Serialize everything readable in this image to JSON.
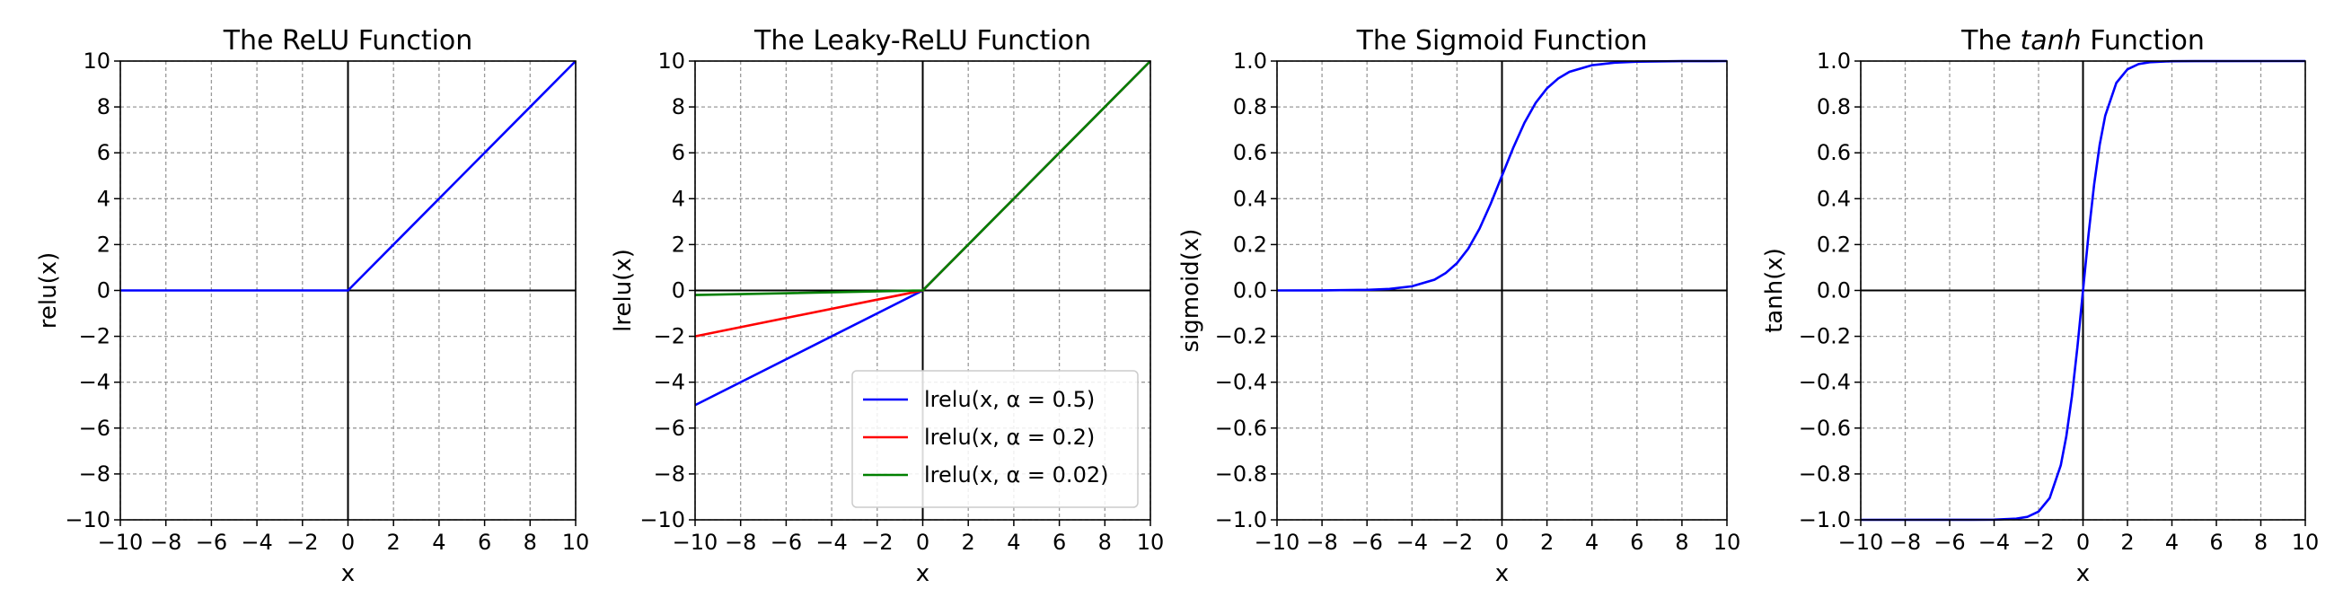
{
  "chart_data": [
    {
      "type": "line",
      "title": "The ReLU Function",
      "xlabel": "x",
      "ylabel": "relu(x)",
      "xlim": [
        -10,
        10
      ],
      "ylim": [
        -10,
        10
      ],
      "xticks": [
        -10,
        -8,
        -6,
        -4,
        -2,
        0,
        2,
        4,
        6,
        8,
        10
      ],
      "yticks": [
        -10,
        -8,
        -6,
        -4,
        -2,
        0,
        2,
        4,
        6,
        8,
        10
      ],
      "xtick_labels": [
        "−10",
        "−8",
        "−6",
        "−4",
        "−2",
        "0",
        "2",
        "4",
        "6",
        "8",
        "10"
      ],
      "ytick_labels": [
        "−10",
        "−8",
        "−6",
        "−4",
        "−2",
        "0",
        "2",
        "4",
        "6",
        "8",
        "10"
      ],
      "grid": true,
      "series": [
        {
          "color": "#0000ff",
          "x": [
            -10,
            0,
            10
          ],
          "y": [
            0,
            0,
            10
          ]
        }
      ]
    },
    {
      "type": "line",
      "title": "The Leaky-ReLU Function",
      "xlabel": "x",
      "ylabel": "lrelu(x)",
      "xlim": [
        -10,
        10
      ],
      "ylim": [
        -10,
        10
      ],
      "xticks": [
        -10,
        -8,
        -6,
        -4,
        -2,
        0,
        2,
        4,
        6,
        8,
        10
      ],
      "yticks": [
        -10,
        -8,
        -6,
        -4,
        -2,
        0,
        2,
        4,
        6,
        8,
        10
      ],
      "xtick_labels": [
        "−10",
        "−8",
        "−6",
        "−4",
        "−2",
        "0",
        "2",
        "4",
        "6",
        "8",
        "10"
      ],
      "ytick_labels": [
        "−10",
        "−8",
        "−6",
        "−4",
        "−2",
        "0",
        "2",
        "4",
        "6",
        "8",
        "10"
      ],
      "grid": true,
      "legend_placement": "lower-right",
      "series": [
        {
          "name": "lrelu(x, α = 0.5)",
          "color": "#0000ff",
          "x": [
            -10,
            0,
            10
          ],
          "y": [
            -5,
            0,
            10
          ]
        },
        {
          "name": "lrelu(x, α = 0.2)",
          "color": "#ff0000",
          "x": [
            -10,
            0,
            10
          ],
          "y": [
            -2,
            0,
            10
          ]
        },
        {
          "name": "lrelu(x, α = 0.02)",
          "color": "#008000",
          "x": [
            -10,
            0,
            10
          ],
          "y": [
            -0.2,
            0,
            10
          ]
        }
      ]
    },
    {
      "type": "line",
      "title": "The Sigmoid Function",
      "xlabel": "x",
      "ylabel": "sigmoid(x)",
      "xlim": [
        -10,
        10
      ],
      "ylim": [
        -1,
        1
      ],
      "xticks": [
        -10,
        -8,
        -6,
        -4,
        -2,
        0,
        2,
        4,
        6,
        8,
        10
      ],
      "yticks": [
        -1,
        -0.8,
        -0.6,
        -0.4,
        -0.2,
        0,
        0.2,
        0.4,
        0.6,
        0.8,
        1
      ],
      "xtick_labels": [
        "−10",
        "−8",
        "−6",
        "−4",
        "−2",
        "0",
        "2",
        "4",
        "6",
        "8",
        "10"
      ],
      "ytick_labels": [
        "−1.0",
        "−0.8",
        "−0.6",
        "−0.4",
        "−0.2",
        "0.0",
        "0.2",
        "0.4",
        "0.6",
        "0.8",
        "1.0"
      ],
      "grid": true,
      "series": [
        {
          "color": "#0000ff",
          "x": [
            -10,
            -8,
            -6,
            -5,
            -4,
            -3,
            -2.5,
            -2,
            -1.5,
            -1,
            -0.5,
            0,
            0.5,
            1,
            1.5,
            2,
            2.5,
            3,
            4,
            5,
            6,
            8,
            10
          ],
          "y": [
            5e-05,
            0.0003,
            0.0025,
            0.0067,
            0.018,
            0.047,
            0.076,
            0.119,
            0.182,
            0.269,
            0.378,
            0.5,
            0.622,
            0.731,
            0.818,
            0.881,
            0.924,
            0.953,
            0.982,
            0.993,
            0.9975,
            0.9997,
            1.0
          ]
        }
      ]
    },
    {
      "type": "line",
      "title_parts": [
        "The ",
        "tanh",
        " Function"
      ],
      "xlabel": "x",
      "ylabel": "tanh(x)",
      "xlim": [
        -10,
        10
      ],
      "ylim": [
        -1,
        1
      ],
      "xticks": [
        -10,
        -8,
        -6,
        -4,
        -2,
        0,
        2,
        4,
        6,
        8,
        10
      ],
      "yticks": [
        -1,
        -0.8,
        -0.6,
        -0.4,
        -0.2,
        0,
        0.2,
        0.4,
        0.6,
        0.8,
        1
      ],
      "xtick_labels": [
        "−10",
        "−8",
        "−6",
        "−4",
        "−2",
        "0",
        "2",
        "4",
        "6",
        "8",
        "10"
      ],
      "ytick_labels": [
        "−1.0",
        "−0.8",
        "−0.6",
        "−0.4",
        "−0.2",
        "0.0",
        "0.2",
        "0.4",
        "0.6",
        "0.8",
        "1.0"
      ],
      "grid": true,
      "series": [
        {
          "color": "#0000ff",
          "x": [
            -10,
            -5,
            -4,
            -3,
            -2.5,
            -2,
            -1.5,
            -1,
            -0.75,
            -0.5,
            -0.25,
            0,
            0.25,
            0.5,
            0.75,
            1,
            1.5,
            2,
            2.5,
            3,
            4,
            5,
            10
          ],
          "y": [
            -1.0,
            -0.9999,
            -0.9993,
            -0.995,
            -0.987,
            -0.964,
            -0.905,
            -0.762,
            -0.635,
            -0.462,
            -0.245,
            0,
            0.245,
            0.462,
            0.635,
            0.762,
            0.905,
            0.964,
            0.987,
            0.995,
            0.9993,
            0.9999,
            1.0
          ]
        }
      ]
    }
  ]
}
